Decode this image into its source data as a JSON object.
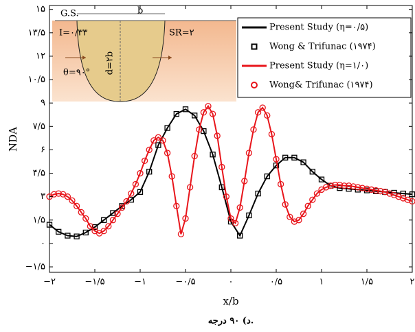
{
  "chart_data": {
    "type": "line",
    "xlabel": "x/b",
    "ylabel": "NDA",
    "caption": "د) ۹۰ درجه.",
    "annotations": [
      "G.S.",
      "b",
      "I=۰/۳۳",
      "SR=۲",
      "d=۲b",
      "θ=۹۰°"
    ],
    "xlim": [
      -2,
      2
    ],
    "ylim": [
      -1.85,
      15.25
    ],
    "xticks": [
      {
        "value": -2,
        "label": "−۲"
      },
      {
        "value": -1.5,
        "label": "−۱/۵"
      },
      {
        "value": -1,
        "label": "−۱"
      },
      {
        "value": -0.5,
        "label": "−۰/۵"
      },
      {
        "value": 0,
        "label": "۰"
      },
      {
        "value": 0.5,
        "label": "۰/۵"
      },
      {
        "value": 1,
        "label": "۱"
      },
      {
        "value": 1.5,
        "label": "۱/۵"
      },
      {
        "value": 2,
        "label": "۲"
      }
    ],
    "yticks": [
      {
        "value": -1.5,
        "label": "−۱/۵"
      },
      {
        "value": 0,
        "label": "۰"
      },
      {
        "value": 1.5,
        "label": "۱/۵"
      },
      {
        "value": 3,
        "label": "۳"
      },
      {
        "value": 4.5,
        "label": "۴/۵"
      },
      {
        "value": 6,
        "label": "۶"
      },
      {
        "value": 7.5,
        "label": "۷/۵"
      },
      {
        "value": 9,
        "label": "۹"
      },
      {
        "value": 10.5,
        "label": "۱۰/۵"
      },
      {
        "value": 12,
        "label": "۱۲"
      },
      {
        "value": 13.5,
        "label": "۱۳/۵"
      },
      {
        "value": 15,
        "label": "۱۵"
      }
    ],
    "series": [
      {
        "name": "Present Study (η=۰/۵)",
        "color": "#000000",
        "style": "line",
        "x": [
          -2,
          -1.9,
          -1.8,
          -1.7,
          -1.6,
          -1.5,
          -1.4,
          -1.3,
          -1.2,
          -1.1,
          -1,
          -0.9,
          -0.8,
          -0.7,
          -0.6,
          -0.5,
          -0.4,
          -0.3,
          -0.2,
          -0.1,
          0,
          0.1,
          0.2,
          0.3,
          0.4,
          0.5,
          0.6,
          0.7,
          0.8,
          0.9,
          1,
          1.1,
          1.2,
          1.3,
          1.4,
          1.5,
          1.6,
          1.7,
          1.8,
          1.9,
          2
        ],
        "values": [
          1.2,
          0.75,
          0.5,
          0.45,
          0.7,
          1.05,
          1.5,
          1.95,
          2.4,
          2.8,
          3.3,
          4.6,
          6.3,
          7.4,
          8.3,
          8.6,
          8.2,
          7.2,
          5.7,
          3.6,
          1.4,
          0.5,
          1.8,
          3.2,
          4.3,
          5,
          5.5,
          5.5,
          5.2,
          4.6,
          4.1,
          3.7,
          3.55,
          3.5,
          3.45,
          3.4,
          3.35,
          3.3,
          3.25,
          3.2,
          3.15
        ]
      },
      {
        "name": "Wong & Trifunac (۱۹۷۴)",
        "color": "#000000",
        "style": "square",
        "x": [
          -2,
          -1.9,
          -1.8,
          -1.7,
          -1.6,
          -1.5,
          -1.4,
          -1.3,
          -1.2,
          -1.1,
          -1,
          -0.9,
          -0.8,
          -0.7,
          -0.6,
          -0.5,
          -0.4,
          -0.3,
          -0.2,
          -0.1,
          0,
          0.1,
          0.2,
          0.3,
          0.4,
          0.5,
          0.6,
          0.7,
          0.8,
          0.9,
          1,
          1.1,
          1.2,
          1.3,
          1.4,
          1.5,
          1.6,
          1.7,
          1.8,
          1.9,
          2
        ],
        "values": [
          1.2,
          0.75,
          0.5,
          0.45,
          0.7,
          1.05,
          1.5,
          1.95,
          2.4,
          2.8,
          3.3,
          4.6,
          6.3,
          7.4,
          8.3,
          8.6,
          8.2,
          7.2,
          5.7,
          3.6,
          1.4,
          0.5,
          1.8,
          3.2,
          4.3,
          5,
          5.5,
          5.5,
          5.2,
          4.6,
          4.1,
          3.7,
          3.55,
          3.5,
          3.45,
          3.4,
          3.35,
          3.3,
          3.25,
          3.2,
          3.15
        ]
      },
      {
        "name": "Present Study (η=۱/۰)",
        "color": "#e8151b",
        "style": "line",
        "x": [
          -2,
          -1.95,
          -1.9,
          -1.85,
          -1.8,
          -1.75,
          -1.7,
          -1.65,
          -1.6,
          -1.55,
          -1.5,
          -1.45,
          -1.4,
          -1.35,
          -1.3,
          -1.25,
          -1.2,
          -1.15,
          -1.1,
          -1.05,
          -1,
          -0.95,
          -0.9,
          -0.85,
          -0.8,
          -0.75,
          -0.7,
          -0.65,
          -0.6,
          -0.55,
          -0.5,
          -0.45,
          -0.4,
          -0.35,
          -0.3,
          -0.25,
          -0.2,
          -0.15,
          -0.1,
          -0.05,
          0,
          0.05,
          0.1,
          0.15,
          0.2,
          0.25,
          0.3,
          0.35,
          0.4,
          0.45,
          0.5,
          0.55,
          0.6,
          0.65,
          0.7,
          0.75,
          0.8,
          0.85,
          0.9,
          0.95,
          1,
          1.05,
          1.1,
          1.15,
          1.2,
          1.25,
          1.3,
          1.35,
          1.4,
          1.45,
          1.5,
          1.55,
          1.6,
          1.65,
          1.7,
          1.75,
          1.8,
          1.85,
          1.9,
          1.95,
          2
        ],
        "values": [
          3,
          3.15,
          3.2,
          3.15,
          3,
          2.75,
          2.4,
          2,
          1.6,
          1.1,
          0.8,
          0.65,
          0.8,
          1.1,
          1.5,
          1.9,
          2.3,
          2.7,
          3.2,
          3.8,
          4.5,
          5.3,
          6,
          6.6,
          6.8,
          6.6,
          5.8,
          4.3,
          2.4,
          0.6,
          1.6,
          3.6,
          5.6,
          7.3,
          8.4,
          8.8,
          8.3,
          6.9,
          4.9,
          3,
          1.6,
          1.3,
          2.3,
          4,
          5.8,
          7.3,
          8.4,
          8.7,
          8.2,
          7,
          5.4,
          3.8,
          2.5,
          1.7,
          1.4,
          1.5,
          1.9,
          2.4,
          2.8,
          3.2,
          3.45,
          3.6,
          3.7,
          3.75,
          3.75,
          3.7,
          3.7,
          3.65,
          3.6,
          3.55,
          3.5,
          3.45,
          3.4,
          3.35,
          3.3,
          3.2,
          3.1,
          3,
          2.9,
          2.8,
          2.7
        ]
      },
      {
        "name": "Wong& Trifunac (۱۹۷۴)",
        "color": "#e8151b",
        "style": "circle",
        "x": [
          -2,
          -1.95,
          -1.9,
          -1.85,
          -1.8,
          -1.75,
          -1.7,
          -1.65,
          -1.6,
          -1.55,
          -1.5,
          -1.45,
          -1.4,
          -1.35,
          -1.3,
          -1.25,
          -1.2,
          -1.15,
          -1.1,
          -1.05,
          -1,
          -0.95,
          -0.9,
          -0.85,
          -0.8,
          -0.75,
          -0.7,
          -0.65,
          -0.6,
          -0.55,
          -0.5,
          -0.45,
          -0.4,
          -0.35,
          -0.3,
          -0.25,
          -0.2,
          -0.15,
          -0.1,
          -0.05,
          0,
          0.05,
          0.1,
          0.15,
          0.2,
          0.25,
          0.3,
          0.35,
          0.4,
          0.45,
          0.5,
          0.55,
          0.6,
          0.65,
          0.7,
          0.75,
          0.8,
          0.85,
          0.9,
          0.95,
          1,
          1.05,
          1.1,
          1.15,
          1.2,
          1.25,
          1.3,
          1.35,
          1.4,
          1.45,
          1.5,
          1.55,
          1.6,
          1.65,
          1.7,
          1.75,
          1.8,
          1.85,
          1.9,
          1.95,
          2
        ],
        "values": [
          3,
          3.15,
          3.2,
          3.15,
          3,
          2.75,
          2.4,
          2,
          1.6,
          1.1,
          0.8,
          0.65,
          0.8,
          1.1,
          1.5,
          1.9,
          2.3,
          2.7,
          3.2,
          3.8,
          4.5,
          5.3,
          6,
          6.6,
          6.8,
          6.6,
          5.8,
          4.3,
          2.4,
          0.6,
          1.6,
          3.6,
          5.6,
          7.3,
          8.4,
          8.8,
          8.3,
          6.9,
          4.9,
          3,
          1.6,
          1.3,
          2.3,
          4,
          5.8,
          7.3,
          8.4,
          8.7,
          8.2,
          7,
          5.4,
          3.8,
          2.5,
          1.7,
          1.4,
          1.5,
          1.9,
          2.4,
          2.8,
          3.2,
          3.45,
          3.6,
          3.7,
          3.75,
          3.75,
          3.7,
          3.7,
          3.65,
          3.6,
          3.55,
          3.5,
          3.45,
          3.4,
          3.35,
          3.3,
          3.2,
          3.1,
          3,
          2.9,
          2.8,
          2.7
        ]
      }
    ]
  }
}
